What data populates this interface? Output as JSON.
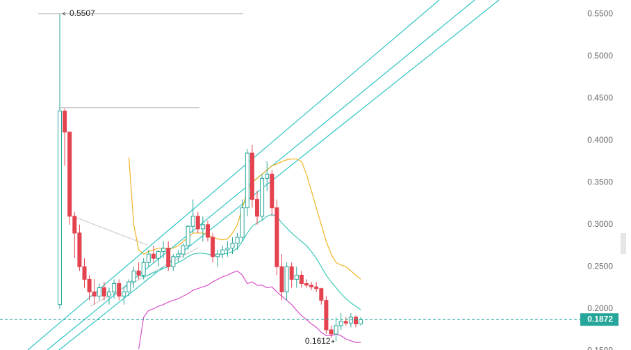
{
  "chart_data": {
    "type": "candlestick",
    "ylim": [
      0.151,
      0.567
    ],
    "yticks": [
      {
        "value": 0.15,
        "label": "0.1500"
      },
      {
        "value": 0.2,
        "label": "0.2000"
      },
      {
        "value": 0.25,
        "label": "0.2500"
      },
      {
        "value": 0.3,
        "label": "0.3000"
      },
      {
        "value": 0.35,
        "label": "0.3500"
      },
      {
        "value": 0.4,
        "label": "0.4000"
      },
      {
        "value": 0.45,
        "label": "0.4500"
      },
      {
        "value": 0.5,
        "label": "0.5000"
      },
      {
        "value": 0.55,
        "label": "0.5500"
      }
    ],
    "up_color": "#26a69a",
    "down_color": "#e5424f",
    "candles": [
      {
        "o": 0.205,
        "h": 0.5507,
        "l": 0.2,
        "c": 0.435
      },
      {
        "o": 0.435,
        "h": 0.438,
        "l": 0.37,
        "c": 0.41
      },
      {
        "o": 0.41,
        "h": 0.41,
        "l": 0.3,
        "c": 0.31
      },
      {
        "o": 0.31,
        "h": 0.315,
        "l": 0.26,
        "c": 0.29
      },
      {
        "o": 0.29,
        "h": 0.3,
        "l": 0.245,
        "c": 0.25
      },
      {
        "o": 0.25,
        "h": 0.26,
        "l": 0.225,
        "c": 0.235
      },
      {
        "o": 0.235,
        "h": 0.24,
        "l": 0.21,
        "c": 0.22
      },
      {
        "o": 0.22,
        "h": 0.235,
        "l": 0.205,
        "c": 0.215
      },
      {
        "o": 0.215,
        "h": 0.23,
        "l": 0.21,
        "c": 0.225
      },
      {
        "o": 0.225,
        "h": 0.232,
        "l": 0.21,
        "c": 0.215
      },
      {
        "o": 0.215,
        "h": 0.225,
        "l": 0.205,
        "c": 0.22
      },
      {
        "o": 0.22,
        "h": 0.235,
        "l": 0.212,
        "c": 0.23
      },
      {
        "o": 0.23,
        "h": 0.235,
        "l": 0.21,
        "c": 0.215
      },
      {
        "o": 0.215,
        "h": 0.225,
        "l": 0.205,
        "c": 0.22
      },
      {
        "o": 0.22,
        "h": 0.235,
        "l": 0.215,
        "c": 0.232
      },
      {
        "o": 0.232,
        "h": 0.25,
        "l": 0.225,
        "c": 0.245
      },
      {
        "o": 0.245,
        "h": 0.255,
        "l": 0.235,
        "c": 0.24
      },
      {
        "o": 0.24,
        "h": 0.26,
        "l": 0.235,
        "c": 0.255
      },
      {
        "o": 0.255,
        "h": 0.27,
        "l": 0.25,
        "c": 0.265
      },
      {
        "o": 0.265,
        "h": 0.275,
        "l": 0.255,
        "c": 0.26
      },
      {
        "o": 0.26,
        "h": 0.27,
        "l": 0.25,
        "c": 0.268
      },
      {
        "o": 0.268,
        "h": 0.28,
        "l": 0.26,
        "c": 0.272
      },
      {
        "o": 0.272,
        "h": 0.28,
        "l": 0.245,
        "c": 0.25
      },
      {
        "o": 0.25,
        "h": 0.265,
        "l": 0.245,
        "c": 0.262
      },
      {
        "o": 0.262,
        "h": 0.27,
        "l": 0.255,
        "c": 0.265
      },
      {
        "o": 0.265,
        "h": 0.278,
        "l": 0.26,
        "c": 0.275
      },
      {
        "o": 0.275,
        "h": 0.3,
        "l": 0.27,
        "c": 0.298
      },
      {
        "o": 0.298,
        "h": 0.33,
        "l": 0.29,
        "c": 0.31
      },
      {
        "o": 0.31,
        "h": 0.315,
        "l": 0.29,
        "c": 0.295
      },
      {
        "o": 0.295,
        "h": 0.31,
        "l": 0.28,
        "c": 0.3
      },
      {
        "o": 0.3,
        "h": 0.305,
        "l": 0.28,
        "c": 0.285
      },
      {
        "o": 0.285,
        "h": 0.29,
        "l": 0.255,
        "c": 0.262
      },
      {
        "o": 0.262,
        "h": 0.27,
        "l": 0.25,
        "c": 0.265
      },
      {
        "o": 0.265,
        "h": 0.275,
        "l": 0.26,
        "c": 0.27
      },
      {
        "o": 0.27,
        "h": 0.28,
        "l": 0.262,
        "c": 0.272
      },
      {
        "o": 0.272,
        "h": 0.285,
        "l": 0.265,
        "c": 0.278
      },
      {
        "o": 0.278,
        "h": 0.29,
        "l": 0.27,
        "c": 0.285
      },
      {
        "o": 0.285,
        "h": 0.33,
        "l": 0.28,
        "c": 0.32
      },
      {
        "o": 0.32,
        "h": 0.39,
        "l": 0.31,
        "c": 0.385
      },
      {
        "o": 0.385,
        "h": 0.395,
        "l": 0.32,
        "c": 0.33
      },
      {
        "o": 0.33,
        "h": 0.34,
        "l": 0.3,
        "c": 0.31
      },
      {
        "o": 0.31,
        "h": 0.36,
        "l": 0.305,
        "c": 0.355
      },
      {
        "o": 0.355,
        "h": 0.375,
        "l": 0.34,
        "c": 0.36
      },
      {
        "o": 0.36,
        "h": 0.365,
        "l": 0.31,
        "c": 0.32
      },
      {
        "o": 0.32,
        "h": 0.33,
        "l": 0.24,
        "c": 0.25
      },
      {
        "o": 0.25,
        "h": 0.265,
        "l": 0.21,
        "c": 0.22
      },
      {
        "o": 0.22,
        "h": 0.255,
        "l": 0.21,
        "c": 0.25
      },
      {
        "o": 0.25,
        "h": 0.255,
        "l": 0.225,
        "c": 0.235
      },
      {
        "o": 0.235,
        "h": 0.25,
        "l": 0.225,
        "c": 0.24
      },
      {
        "o": 0.24,
        "h": 0.245,
        "l": 0.225,
        "c": 0.23
      },
      {
        "o": 0.23,
        "h": 0.235,
        "l": 0.225,
        "c": 0.228
      },
      {
        "o": 0.228,
        "h": 0.232,
        "l": 0.222,
        "c": 0.226
      },
      {
        "o": 0.226,
        "h": 0.232,
        "l": 0.22,
        "c": 0.224
      },
      {
        "o": 0.224,
        "h": 0.225,
        "l": 0.205,
        "c": 0.21
      },
      {
        "o": 0.21,
        "h": 0.215,
        "l": 0.17,
        "c": 0.175
      },
      {
        "o": 0.175,
        "h": 0.18,
        "l": 0.165,
        "c": 0.17
      },
      {
        "o": 0.17,
        "h": 0.19,
        "l": 0.1612,
        "c": 0.18
      },
      {
        "o": 0.18,
        "h": 0.195,
        "l": 0.175,
        "c": 0.185
      },
      {
        "o": 0.185,
        "h": 0.19,
        "l": 0.18,
        "c": 0.183
      },
      {
        "o": 0.183,
        "h": 0.195,
        "l": 0.178,
        "c": 0.19
      },
      {
        "o": 0.19,
        "h": 0.192,
        "l": 0.178,
        "c": 0.182
      },
      {
        "o": 0.182,
        "h": 0.19,
        "l": 0.18,
        "c": 0.1872
      }
    ],
    "series": [
      {
        "color": "#f0b323",
        "values": [
          null,
          null,
          null,
          null,
          null,
          null,
          null,
          null,
          null,
          null,
          null,
          null,
          null,
          null,
          0.38,
          0.3,
          0.27,
          0.265,
          0.268,
          0.27,
          0.272,
          0.272,
          0.272,
          0.272,
          0.275,
          0.28,
          0.285,
          0.29,
          0.29,
          0.29,
          0.288,
          0.285,
          0.283,
          0.282,
          0.283,
          0.29,
          0.3,
          0.32,
          0.34,
          0.35,
          0.355,
          0.36,
          0.365,
          0.37,
          0.372,
          0.375,
          0.377,
          0.378,
          0.378,
          0.375,
          0.36,
          0.34,
          0.32,
          0.3,
          0.28,
          0.265,
          0.255,
          0.252,
          0.25,
          0.245,
          0.24,
          0.235
        ]
      },
      {
        "color": "#3cc8b4",
        "values": [
          null,
          null,
          null,
          null,
          null,
          null,
          null,
          null,
          null,
          null,
          null,
          null,
          null,
          null,
          null,
          0.245,
          0.24,
          0.238,
          0.24,
          0.243,
          0.245,
          0.248,
          0.25,
          0.252,
          0.255,
          0.258,
          0.262,
          0.265,
          0.266,
          0.266,
          0.265,
          0.264,
          0.264,
          0.265,
          0.266,
          0.268,
          0.272,
          0.28,
          0.29,
          0.298,
          0.302,
          0.305,
          0.31,
          0.312,
          0.31,
          0.302,
          0.296,
          0.29,
          0.285,
          0.28,
          0.275,
          0.268,
          0.26,
          0.25,
          0.24,
          0.232,
          0.225,
          0.218,
          0.212,
          0.207,
          0.203,
          0.199
        ]
      },
      {
        "color": "#d64fc9",
        "values": [
          null,
          null,
          null,
          null,
          null,
          null,
          null,
          null,
          null,
          null,
          null,
          null,
          null,
          null,
          null,
          null,
          0.152,
          0.19,
          0.198,
          0.2,
          0.203,
          0.205,
          0.208,
          0.21,
          0.212,
          0.215,
          0.218,
          0.222,
          0.224,
          0.226,
          0.228,
          0.232,
          0.235,
          0.238,
          0.24,
          0.243,
          0.245,
          0.24,
          0.23,
          0.232,
          0.228,
          0.228,
          0.225,
          0.226,
          0.22,
          0.215,
          0.21,
          0.205,
          0.198,
          0.192,
          0.187,
          0.182,
          0.178,
          0.172,
          0.168,
          0.168,
          0.17,
          0.168,
          0.164,
          0.162,
          0.16,
          0.16
        ]
      }
    ],
    "levels": [
      0.439
    ],
    "annotations": [
      {
        "label": "0.5507",
        "value": 0.5507,
        "at": "high"
      },
      {
        "label": "0.1612",
        "value": 0.1612,
        "at": "low"
      }
    ],
    "last_price": {
      "label": "0.1872",
      "value": 0.1872
    }
  }
}
